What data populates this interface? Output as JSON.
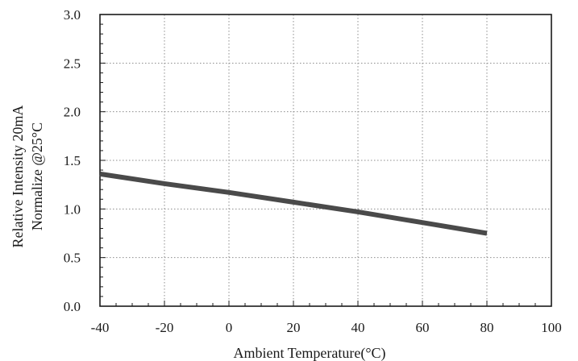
{
  "chart_data": {
    "type": "line",
    "xlabel": "Ambient Temperature(°C)",
    "ylabel_lines": [
      "Relative Intensity 20mA",
      "Normalize @25°C"
    ],
    "xlim": [
      -40,
      100
    ],
    "ylim": [
      0.0,
      3.0
    ],
    "x_ticks": [
      -40,
      -20,
      0,
      20,
      40,
      60,
      80,
      100
    ],
    "x_tick_labels": [
      "-40",
      "-20",
      "0",
      "20",
      "40",
      "60",
      "80",
      "100"
    ],
    "y_ticks": [
      0.0,
      0.5,
      1.0,
      1.5,
      2.0,
      2.5,
      3.0
    ],
    "y_tick_labels": [
      "0.0",
      "0.5",
      "1.0",
      "1.5",
      "2.0",
      "2.5",
      "3.0"
    ],
    "grid": true,
    "series": [
      {
        "x": [
          -40,
          -20,
          0,
          20,
          40,
          60,
          80
        ],
        "y": [
          1.36,
          1.26,
          1.17,
          1.07,
          0.97,
          0.86,
          0.75
        ]
      }
    ],
    "line_color": "#4a4a4a"
  }
}
